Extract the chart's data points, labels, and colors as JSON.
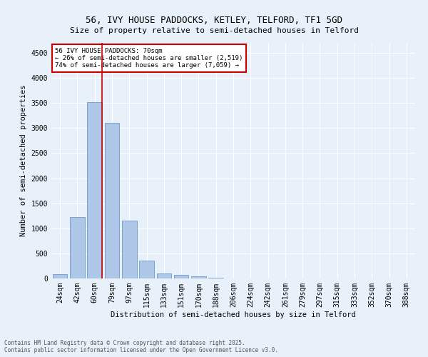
{
  "title": "56, IVY HOUSE PADDOCKS, KETLEY, TELFORD, TF1 5GD",
  "subtitle": "Size of property relative to semi-detached houses in Telford",
  "xlabel": "Distribution of semi-detached houses by size in Telford",
  "ylabel": "Number of semi-detached properties",
  "bar_color": "#aec6e8",
  "bar_edge_color": "#5a8fc0",
  "bin_labels": [
    "24sqm",
    "42sqm",
    "60sqm",
    "79sqm",
    "97sqm",
    "115sqm",
    "133sqm",
    "151sqm",
    "170sqm",
    "188sqm",
    "206sqm",
    "224sqm",
    "242sqm",
    "261sqm",
    "279sqm",
    "297sqm",
    "315sqm",
    "333sqm",
    "352sqm",
    "370sqm",
    "388sqm"
  ],
  "bar_values": [
    80,
    1220,
    3520,
    3100,
    1150,
    360,
    105,
    65,
    40,
    15,
    5,
    0,
    0,
    0,
    0,
    0,
    0,
    0,
    0,
    0,
    0
  ],
  "vline_bin_index": 2,
  "ylim": [
    0,
    4700
  ],
  "yticks": [
    0,
    500,
    1000,
    1500,
    2000,
    2500,
    3000,
    3500,
    4000,
    4500
  ],
  "annotation_title": "56 IVY HOUSE PADDOCKS: 70sqm",
  "annotation_line1": "← 26% of semi-detached houses are smaller (2,519)",
  "annotation_line2": "74% of semi-detached houses are larger (7,059) →",
  "footnote1": "Contains HM Land Registry data © Crown copyright and database right 2025.",
  "footnote2": "Contains public sector information licensed under the Open Government Licence v3.0.",
  "background_color": "#e8f0fa",
  "grid_color": "#ffffff",
  "annotation_box_color": "#ffffff",
  "annotation_box_edge": "#cc0000",
  "vline_color": "#cc0000",
  "title_fontsize": 9,
  "subtitle_fontsize": 8,
  "ylabel_fontsize": 7.5,
  "xlabel_fontsize": 7.5,
  "tick_fontsize": 7,
  "annotation_fontsize": 6.5,
  "footnote_fontsize": 5.5
}
